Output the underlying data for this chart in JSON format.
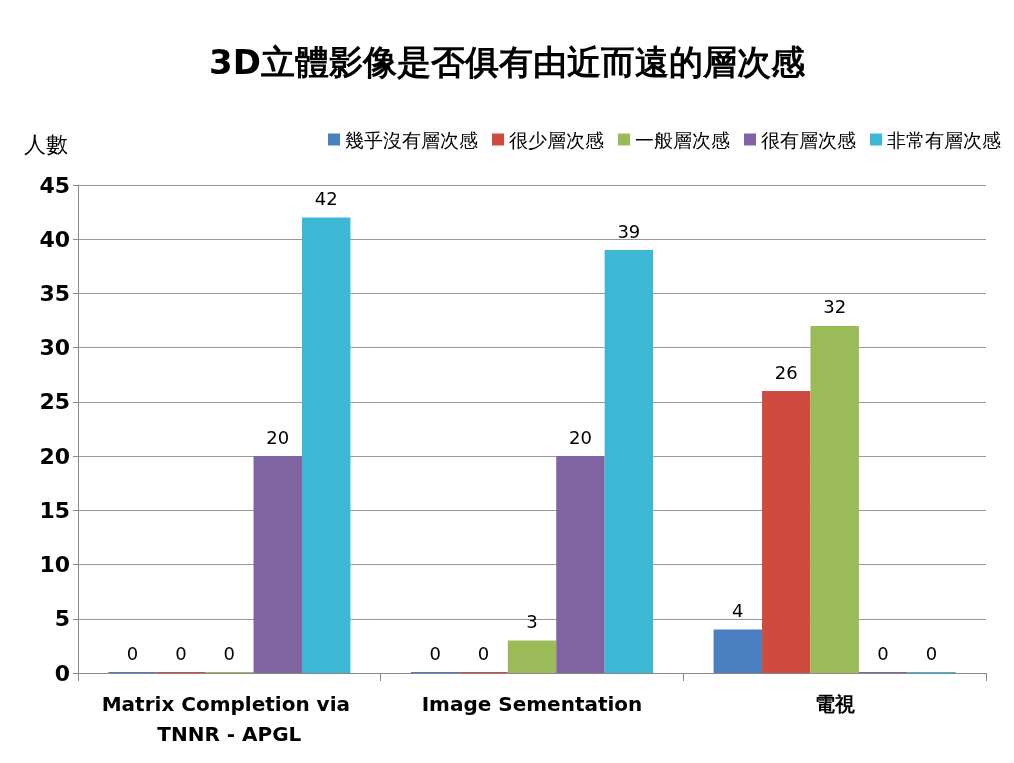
{
  "chart_data": {
    "type": "bar",
    "title": "3D立體影像是否俱有由近而遠的層次感",
    "ylabel": "人數",
    "categories": [
      "Matrix Completion via TNNR - APGL",
      "Image Sementation",
      "電視"
    ],
    "series": [
      {
        "name": "幾乎沒有層次感",
        "color": "#4a7fc1",
        "values": [
          0,
          0,
          4
        ]
      },
      {
        "name": "很少層次感",
        "color": "#d04b3f",
        "values": [
          0,
          0,
          26
        ]
      },
      {
        "name": "一般層次感",
        "color": "#9bbb59",
        "values": [
          0,
          3,
          32
        ]
      },
      {
        "name": "很有層次感",
        "color": "#8064a2",
        "values": [
          20,
          20,
          0
        ]
      },
      {
        "name": "非常有層次感",
        "color": "#3cb8d4",
        "values": [
          42,
          39,
          0
        ]
      }
    ],
    "ylim": [
      0,
      45
    ],
    "yticks": [
      0,
      5,
      10,
      15,
      20,
      25,
      30,
      35,
      40,
      45
    ],
    "grid": "y",
    "legend": "top right",
    "data_labels": true
  }
}
